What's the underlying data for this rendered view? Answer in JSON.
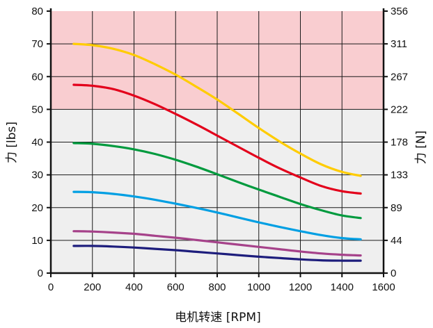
{
  "chart_data": {
    "type": "line",
    "title": "",
    "xlabel": "电机转速 [RPM]",
    "ylabel": "力 [lbs]",
    "y2label": "力 [N]",
    "xlim": [
      0,
      1600
    ],
    "ylim": [
      0,
      80
    ],
    "xticks": [
      "0",
      "200",
      "400",
      "600",
      "800",
      "1000",
      "1200",
      "1400",
      "1600"
    ],
    "yticks": [
      "0",
      "10",
      "20",
      "30",
      "40",
      "50",
      "60",
      "70",
      "80"
    ],
    "y2ticks": [
      "0",
      "44",
      "89",
      "133",
      "178",
      "222",
      "267",
      "311",
      "356"
    ],
    "grid": true,
    "bands": [
      {
        "from": 50,
        "to": 80,
        "color": "#f9cdd0"
      },
      {
        "from": 0,
        "to": 50,
        "color": "#efefef"
      }
    ],
    "series": [
      {
        "color": "#ffcc00",
        "x": [
          110,
          200,
          300,
          400,
          500,
          600,
          700,
          800,
          900,
          1000,
          1100,
          1200,
          1300,
          1400,
          1490
        ],
        "y": [
          70,
          69.6,
          68.5,
          66.6,
          63.8,
          60.6,
          56.9,
          53,
          48.7,
          44.3,
          40.2,
          36.5,
          33.2,
          30.9,
          29.7
        ]
      },
      {
        "color": "#e3001b",
        "x": [
          110,
          200,
          300,
          400,
          500,
          600,
          700,
          800,
          900,
          1000,
          1100,
          1200,
          1300,
          1400,
          1490
        ],
        "y": [
          57.5,
          57.2,
          56.2,
          54.2,
          51.6,
          48.6,
          45.4,
          42,
          38.6,
          35.2,
          32,
          29.2,
          26.6,
          25,
          24.3
        ]
      },
      {
        "color": "#009a3e",
        "x": [
          110,
          200,
          300,
          400,
          500,
          600,
          700,
          800,
          900,
          1000,
          1100,
          1200,
          1300,
          1400,
          1490
        ],
        "y": [
          39.7,
          39.5,
          38.8,
          37.8,
          36.4,
          34.6,
          32.5,
          30.2,
          27.8,
          25.5,
          23.3,
          21.1,
          19.2,
          17.6,
          16.8
        ]
      },
      {
        "color": "#009fe3",
        "x": [
          110,
          200,
          300,
          400,
          500,
          600,
          700,
          800,
          900,
          1000,
          1100,
          1200,
          1300,
          1400,
          1490
        ],
        "y": [
          24.8,
          24.7,
          24.2,
          23.4,
          22.4,
          21.2,
          19.9,
          18.5,
          17,
          15.5,
          14.1,
          12.8,
          11.6,
          10.7,
          10.3
        ]
      },
      {
        "color": "#a6428a",
        "x": [
          110,
          200,
          300,
          400,
          500,
          600,
          700,
          800,
          900,
          1000,
          1100,
          1200,
          1300,
          1400,
          1490
        ],
        "y": [
          12.8,
          12.7,
          12.4,
          12,
          11.4,
          10.8,
          10.1,
          9.4,
          8.7,
          8,
          7.3,
          6.6,
          6,
          5.6,
          5.4
        ]
      },
      {
        "color": "#1d1d7c",
        "x": [
          110,
          200,
          300,
          400,
          500,
          600,
          700,
          800,
          900,
          1000,
          1100,
          1200,
          1300,
          1400,
          1490
        ],
        "y": [
          8.3,
          8.3,
          8.1,
          7.8,
          7.4,
          7,
          6.5,
          6,
          5.5,
          5,
          4.6,
          4.2,
          3.9,
          3.8,
          3.8
        ]
      }
    ]
  }
}
